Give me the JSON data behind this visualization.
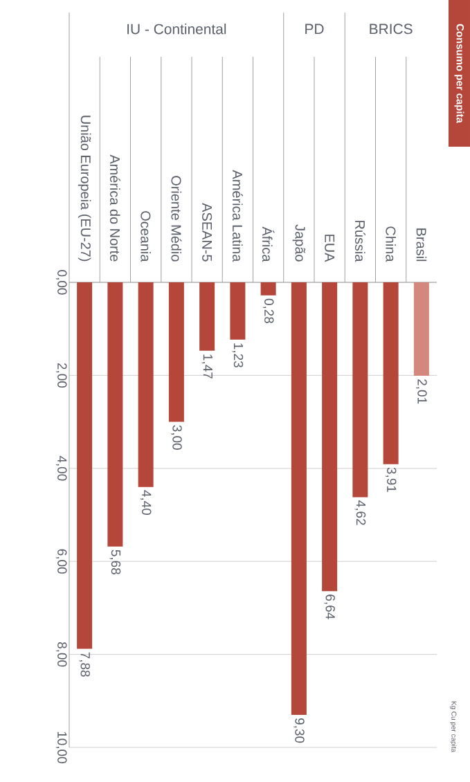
{
  "chart_data": {
    "type": "bar",
    "title": "Consumo per capita",
    "ylabel": "Kg Cu per capita",
    "annotations": [
      "IU - Continental",
      "PD",
      "BRICS"
    ],
    "categories": [
      "União Europeia (EU-27)",
      "América do Norte",
      "Oceania",
      "Oriente Médio",
      "ASEAN-5",
      "América Latina",
      "África",
      "Japão",
      "EUA",
      "Rússia",
      "China",
      "Brasil"
    ],
    "values": [
      7.88,
      5.68,
      4.4,
      3.0,
      1.47,
      1.23,
      0.28,
      9.3,
      6.64,
      4.62,
      3.91,
      2.01
    ],
    "value_labels": [
      "7,88",
      "5,68",
      "4,40",
      "3,00",
      "1,47",
      "1,23",
      "0,28",
      "9,30",
      "6,64",
      "4,62",
      "3,91",
      "2,01"
    ],
    "colors": [
      "#b5473a",
      "#b5473a",
      "#b5473a",
      "#b5473a",
      "#b5473a",
      "#b5473a",
      "#b5473a",
      "#b5473a",
      "#b5473a",
      "#b5473a",
      "#b5473a",
      "#d4877d"
    ],
    "ylim": [
      10,
      0
    ],
    "yticks": [
      {
        "value": 0,
        "label": "0,00"
      },
      {
        "value": 2,
        "label": "2,00"
      },
      {
        "value": 4,
        "label": "4,00"
      },
      {
        "value": 6,
        "label": "6,00"
      },
      {
        "value": 8,
        "label": "8,00"
      },
      {
        "value": 10,
        "label": "10,00"
      }
    ],
    "grid": "y"
  }
}
